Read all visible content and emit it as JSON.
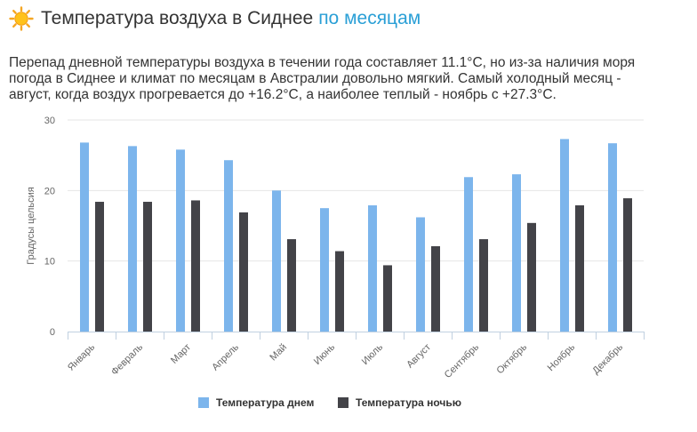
{
  "header": {
    "title": "Температура воздуха в Сиднее",
    "title_link": "по месяцам",
    "icon": "sun-icon"
  },
  "description": "Перепад дневной температуры воздуха в течении года составляет 11.1°C, но из-за наличия моря погода в Сиднее и климат по месяцам в Австралии довольно мягкий. Самый холодный месяц - август, когда воздух прогревается до +16.2°C, а наиболее теплый - ноябрь с +27.3°C.",
  "colors": {
    "day": "#7cb5ec",
    "night": "#434348",
    "link": "#2a9fd6"
  },
  "chart_data": {
    "type": "bar",
    "ylabel": "Градусы цельсия",
    "ylim": [
      0,
      30
    ],
    "yticks": [
      0,
      10,
      20,
      30
    ],
    "grid": true,
    "legend_position": "bottom",
    "categories": [
      "Январь",
      "Февраль",
      "Март",
      "Апрель",
      "Май",
      "Июнь",
      "Июль",
      "Август",
      "Сентябрь",
      "Октябрь",
      "Ноябрь",
      "Декабрь"
    ],
    "series": [
      {
        "name": "Температура днем",
        "values": [
          26.8,
          26.3,
          25.8,
          24.3,
          20.0,
          17.5,
          17.9,
          16.2,
          21.9,
          22.3,
          27.3,
          26.7
        ]
      },
      {
        "name": "Температура ночью",
        "values": [
          18.4,
          18.4,
          18.6,
          16.9,
          13.1,
          11.4,
          9.4,
          12.1,
          13.1,
          15.4,
          17.9,
          18.9
        ]
      }
    ]
  }
}
